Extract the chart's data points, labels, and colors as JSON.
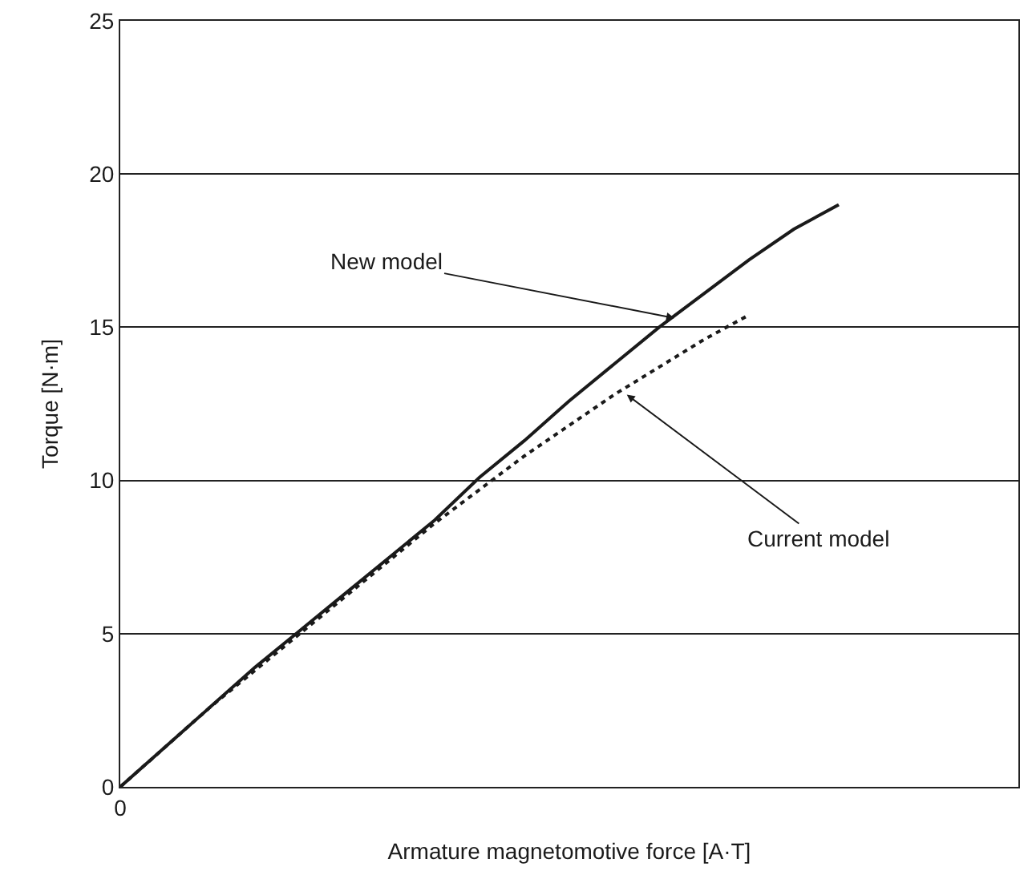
{
  "chart_data": {
    "type": "line",
    "xlabel": "Armature magnetomotive force [A·T]",
    "ylabel": "Torque [N·m]",
    "categories": [
      "0",
      null,
      null,
      null,
      null,
      null,
      null,
      null,
      null,
      null,
      null,
      null,
      null,
      null,
      null,
      null,
      null,
      null,
      null,
      null,
      null
    ],
    "ylim": [
      0,
      25
    ],
    "yticks": [
      0,
      5,
      10,
      15,
      20,
      25
    ],
    "grid": "y",
    "marker": "none",
    "series": [
      {
        "values": [
          0,
          1.3,
          2.6,
          3.9,
          5.1,
          6.3,
          7.5,
          8.7,
          10.1,
          11.3,
          12.6,
          13.8,
          15.0,
          16.1,
          17.2,
          18.2,
          19.0,
          null,
          null,
          null,
          null
        ],
        "color": "#1a1a1a",
        "line_style": "solid"
      },
      {
        "values": [
          0,
          1.3,
          2.6,
          3.8,
          5.0,
          6.2,
          7.4,
          8.6,
          9.7,
          10.8,
          11.8,
          12.8,
          13.7,
          14.6,
          15.4,
          null,
          null,
          null,
          null,
          null,
          null
        ],
        "color": "#1a1a1a",
        "line_style": "dotted"
      }
    ],
    "annotations": [
      "New model",
      "Current model"
    ]
  }
}
